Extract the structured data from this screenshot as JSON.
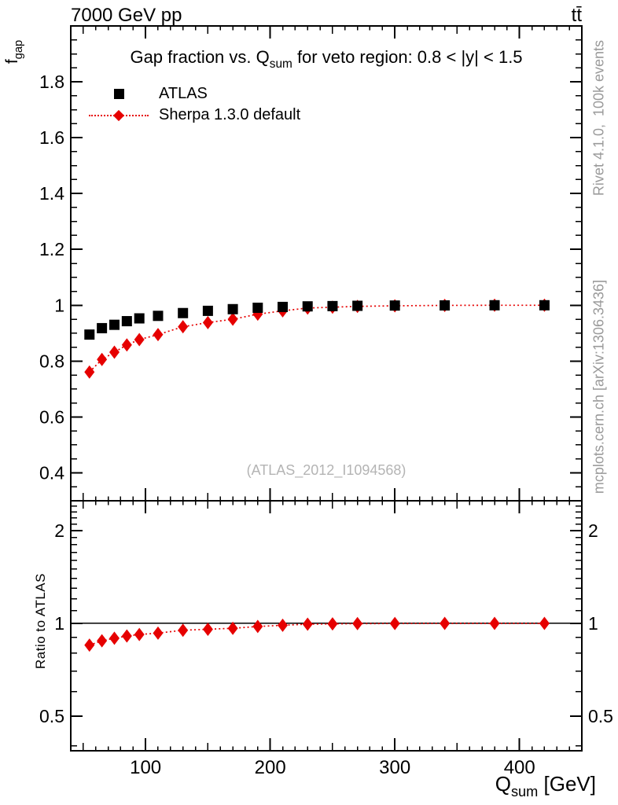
{
  "header": {
    "beam": "7000 GeV pp",
    "process": "tt̄"
  },
  "side_notes": {
    "generator": "Rivet 4.1.0,  100k events",
    "source": "mcplots.cern.ch [arXiv:1306.3436]"
  },
  "watermark": "(ATLAS_2012_I1094568)",
  "colors": {
    "atlas": "#000000",
    "sherpa": "#e60000",
    "notes": "#9a9a9a",
    "watermark": "#b4b4b4"
  },
  "chart_data": [
    {
      "type": "scatter",
      "title": "Gap fraction vs. Qsum for veto region: 0.8 < |y| < 1.5",
      "title_parts": {
        "pre": "Gap fraction vs. Q",
        "sub": "sum",
        "post": " for veto region: 0.8 < |y| < 1.5"
      },
      "ylabel": "f_gap",
      "ylabel_parts": {
        "pre": "f",
        "sub": "gap"
      },
      "x": [
        55,
        65,
        75,
        85,
        95,
        110,
        130,
        150,
        170,
        190,
        210,
        230,
        250,
        270,
        300,
        340,
        380,
        420
      ],
      "series": [
        {
          "name": "ATLAS",
          "marker": "square",
          "color": "#000000",
          "values": [
            0.895,
            0.918,
            0.93,
            0.943,
            0.953,
            0.962,
            0.972,
            0.98,
            0.986,
            0.991,
            0.994,
            0.996,
            0.997,
            0.998,
            0.999,
            0.9995,
            1.0,
            1.0
          ]
        },
        {
          "name": "Sherpa 1.3.0 default",
          "marker": "diamond",
          "line": "dotted",
          "color": "#e60000",
          "values": [
            0.761,
            0.806,
            0.832,
            0.858,
            0.877,
            0.895,
            0.923,
            0.938,
            0.95,
            0.968,
            0.98,
            0.99,
            0.993,
            0.996,
            0.998,
            0.9995,
            1.0,
            1.0
          ],
          "errors": [
            0.008,
            0.008,
            0.007,
            0.007,
            0.007,
            0.006,
            0.006,
            0.006,
            0.006,
            0.006,
            0.007,
            0.007,
            0.007,
            0.008,
            0.008,
            0.009,
            0.01,
            0.011
          ]
        }
      ],
      "xlim": [
        40,
        450
      ],
      "ylim": [
        0.3,
        2.0
      ],
      "yscale": "linear",
      "grid": false,
      "legend_position": "top-left",
      "xtick_values": [
        100,
        200,
        300,
        400
      ],
      "ytick_values": [
        0.4,
        0.6,
        0.8,
        1,
        1.2,
        1.4,
        1.6,
        1.8
      ],
      "ytick_labels": [
        "0.4",
        "0.6",
        "0.8",
        "1",
        "1.2",
        "1.4",
        "1.6",
        "1.8"
      ]
    },
    {
      "type": "scatter",
      "ylabel": "Ratio to ATLAS",
      "xlabel": "Qsum [GeV]",
      "xlabel_parts": {
        "pre": "Q",
        "sub": "sum",
        "post": " [GeV]"
      },
      "x": [
        55,
        65,
        75,
        85,
        95,
        110,
        130,
        150,
        170,
        190,
        210,
        230,
        250,
        270,
        300,
        340,
        380,
        420
      ],
      "series": [
        {
          "name": "Sherpa 1.3.0 default / ATLAS",
          "marker": "diamond",
          "line": "dotted",
          "color": "#e60000",
          "values": [
            0.85,
            0.878,
            0.895,
            0.91,
            0.92,
            0.93,
            0.95,
            0.957,
            0.964,
            0.977,
            0.986,
            0.994,
            0.996,
            0.998,
            0.999,
            1.0,
            1.0,
            1.0
          ],
          "errors": [
            0.012,
            0.011,
            0.011,
            0.011,
            0.011,
            0.01,
            0.01,
            0.01,
            0.011,
            0.011,
            0.012,
            0.012,
            0.013,
            0.014,
            0.014,
            0.016,
            0.018,
            0.02
          ]
        }
      ],
      "reference_line": 1,
      "xlim": [
        40,
        450
      ],
      "ylim": [
        0.386,
        2.5
      ],
      "yscale": "log",
      "grid": false,
      "xtick_values": [
        100,
        200,
        300,
        400
      ],
      "xtick_labels": [
        "100",
        "200",
        "300",
        "400"
      ],
      "ytick_values": [
        0.5,
        1,
        2
      ],
      "ytick_labels": [
        "0.5",
        "1",
        "2"
      ],
      "ytick_minor": [
        0.4,
        0.6,
        0.7,
        0.8,
        0.9,
        1.1,
        1.2,
        1.3,
        1.4,
        1.5,
        1.6,
        1.7,
        1.8,
        1.9,
        2.1,
        2.2,
        2.3,
        2.4
      ]
    }
  ]
}
